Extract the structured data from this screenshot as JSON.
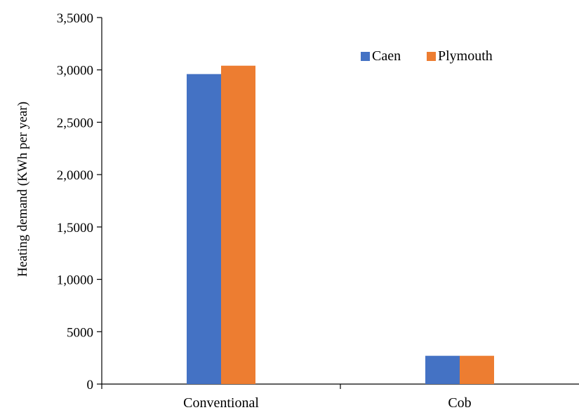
{
  "chart_data": {
    "type": "bar",
    "title": "",
    "xlabel": "",
    "ylabel": "Heating demand  (KWh per year)",
    "ylim": [
      0,
      35000
    ],
    "yticks": [
      0,
      5000,
      10000,
      15000,
      20000,
      25000,
      30000,
      35000
    ],
    "ytick_labels": [
      "0",
      "5000",
      "1,0000",
      "1,5000",
      "2,0000",
      "2,5000",
      "3,0000",
      "3,5000"
    ],
    "categories": [
      "Conventional",
      "Cob"
    ],
    "series": [
      {
        "name": "Caen",
        "color": "#4472C4",
        "values": [
          29600,
          2700
        ]
      },
      {
        "name": "Plymouth",
        "color": "#ED7D31",
        "values": [
          30400,
          2700
        ]
      }
    ],
    "legend_position": "top-right",
    "grid": false
  }
}
